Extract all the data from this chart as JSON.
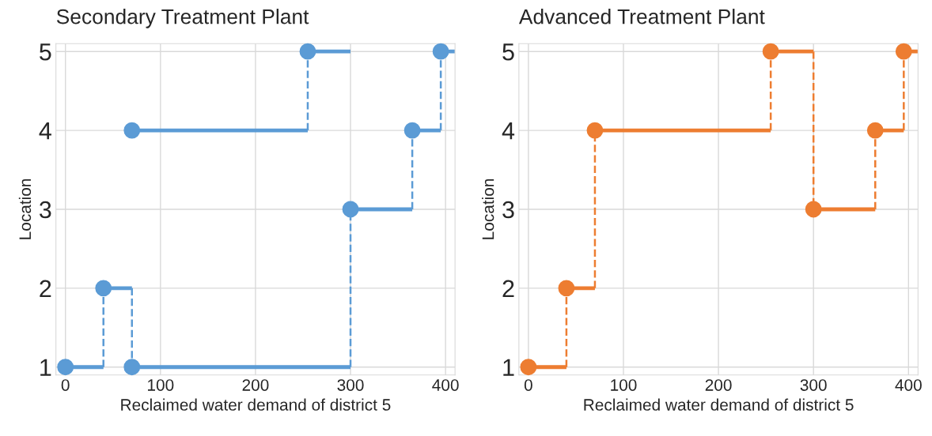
{
  "chart_data": [
    {
      "type": "step",
      "title": "Secondary Treatment Plant",
      "xlabel": "Reclaimed water demand of district 5",
      "ylabel": "Location",
      "series": [
        {
          "color": "#5b9bd5",
          "x": [
            0,
            40,
            70,
            300,
            365,
            395
          ],
          "values": [
            1,
            2,
            1,
            3,
            4,
            5
          ]
        },
        {
          "color": "#5b9bd5",
          "x": [
            70,
            255
          ],
          "values": [
            4,
            5
          ]
        }
      ],
      "xlim": [
        -10,
        410
      ],
      "xticks": [
        0,
        100,
        200,
        300,
        400
      ],
      "ylim": [
        0.9,
        5.1
      ],
      "yticks": [
        1,
        2,
        3,
        4,
        5
      ],
      "grid": true,
      "marker": "circle",
      "line_style": "solid"
    },
    {
      "type": "step",
      "title": "Advanced Treatment Plant",
      "xlabel": "Reclaimed water demand of district 5",
      "ylabel": "Location",
      "series": [
        {
          "color": "#ed7d31",
          "x": [
            0,
            40,
            70,
            255,
            300,
            365,
            395
          ],
          "values": [
            1,
            2,
            4,
            5,
            3,
            4,
            5
          ]
        }
      ],
      "xlim": [
        -10,
        410
      ],
      "xticks": [
        0,
        100,
        200,
        300,
        400
      ],
      "ylim": [
        0.9,
        5.1
      ],
      "yticks": [
        1,
        2,
        3,
        4,
        5
      ],
      "grid": true,
      "marker": "circle",
      "line_style": "solid"
    }
  ]
}
